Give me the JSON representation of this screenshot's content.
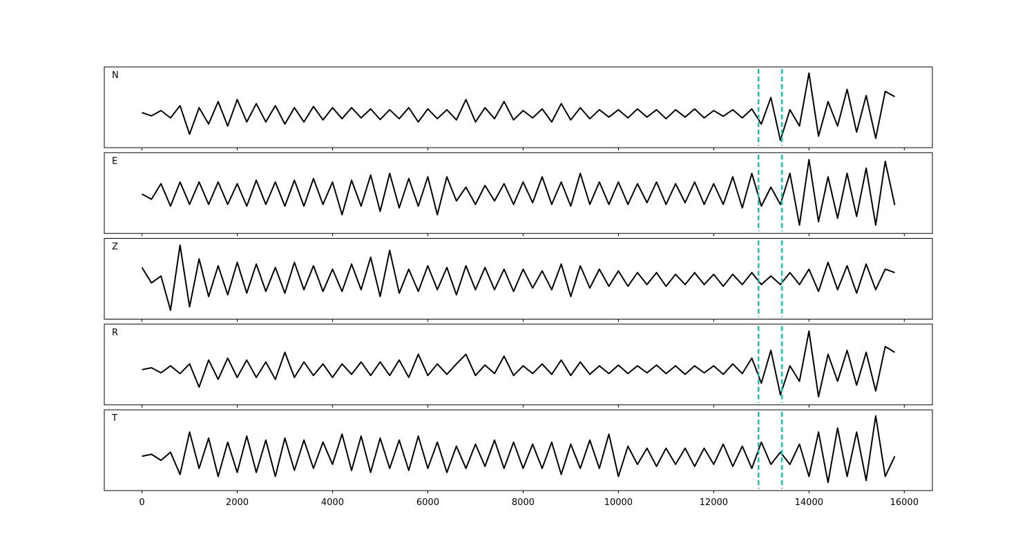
{
  "chart_data": {
    "type": "line",
    "stacked_panels": true,
    "x": [
      0,
      200,
      400,
      600,
      800,
      1000,
      1200,
      1400,
      1600,
      1800,
      2000,
      2200,
      2400,
      2600,
      2800,
      3000,
      3200,
      3400,
      3600,
      3800,
      4000,
      4200,
      4400,
      4600,
      4800,
      5000,
      5200,
      5400,
      5600,
      5800,
      6000,
      6200,
      6400,
      6600,
      6800,
      7000,
      7200,
      7400,
      7600,
      7800,
      8000,
      8200,
      8400,
      8600,
      8800,
      9000,
      9200,
      9400,
      9600,
      9800,
      10000,
      10200,
      10400,
      10600,
      10800,
      11000,
      11200,
      11400,
      11600,
      11800,
      12000,
      12200,
      12400,
      12600,
      12800,
      13000,
      13200,
      13400,
      13600,
      13800,
      14000,
      14200,
      14400,
      14600,
      14800,
      15000,
      15200,
      15400,
      15600,
      15800
    ],
    "xlim": [
      -790,
      16590
    ],
    "xticks": [
      0,
      2000,
      4000,
      6000,
      8000,
      10000,
      12000,
      14000,
      16000
    ],
    "vlines": [
      12940,
      13430
    ],
    "vline_color": "#17bfae",
    "series": [
      {
        "name": "N",
        "color": "#000000",
        "ylim": [
          -0.83,
          1.15
        ],
        "values": [
          0.03,
          -0.05,
          0.08,
          -0.1,
          0.2,
          -0.5,
          0.15,
          -0.25,
          0.3,
          -0.3,
          0.35,
          -0.2,
          0.25,
          -0.2,
          0.2,
          -0.25,
          0.15,
          -0.2,
          0.18,
          -0.15,
          0.15,
          -0.12,
          0.15,
          -0.1,
          0.12,
          -0.14,
          0.1,
          -0.12,
          0.15,
          -0.2,
          0.12,
          -0.12,
          0.1,
          -0.15,
          0.35,
          -0.2,
          0.15,
          -0.12,
          0.3,
          -0.15,
          0.08,
          -0.1,
          0.12,
          -0.2,
          0.25,
          -0.15,
          0.15,
          -0.12,
          0.1,
          -0.08,
          0.1,
          -0.1,
          0.12,
          -0.08,
          0.1,
          -0.12,
          0.1,
          -0.08,
          0.12,
          -0.1,
          0.08,
          -0.06,
          0.1,
          -0.1,
          0.12,
          -0.25,
          0.4,
          -0.65,
          0.1,
          -0.3,
          1.0,
          -0.55,
          0.3,
          -0.3,
          0.6,
          -0.45,
          0.45,
          -0.6,
          0.55,
          0.42
        ]
      },
      {
        "name": "E",
        "color": "#000000",
        "ylim": [
          -1.14,
          1.2
        ],
        "values": [
          0.0,
          -0.15,
          0.3,
          -0.35,
          0.35,
          -0.3,
          0.35,
          -0.3,
          0.35,
          -0.3,
          0.3,
          -0.35,
          0.4,
          -0.3,
          0.35,
          -0.35,
          0.4,
          -0.35,
          0.45,
          -0.3,
          0.35,
          -0.6,
          0.4,
          -0.35,
          0.55,
          -0.5,
          0.6,
          -0.4,
          0.45,
          -0.35,
          0.5,
          -0.6,
          0.5,
          -0.2,
          0.2,
          -0.3,
          0.25,
          -0.2,
          0.3,
          -0.3,
          0.35,
          -0.25,
          0.5,
          -0.3,
          0.35,
          -0.35,
          0.6,
          -0.3,
          0.35,
          -0.3,
          0.35,
          -0.3,
          0.3,
          -0.25,
          0.35,
          -0.3,
          0.3,
          -0.25,
          0.35,
          -0.3,
          0.3,
          -0.3,
          0.5,
          -0.4,
          0.6,
          -0.35,
          0.2,
          -0.3,
          0.6,
          -0.9,
          1.0,
          -0.8,
          0.5,
          -0.7,
          0.6,
          -0.65,
          0.75,
          -0.9,
          0.95,
          -0.32
        ]
      },
      {
        "name": "Z",
        "color": "#000000",
        "ylim": [
          -1.16,
          1.2
        ],
        "values": [
          0.35,
          -0.1,
          0.1,
          -0.9,
          1.0,
          -0.8,
          0.6,
          -0.5,
          0.4,
          -0.45,
          0.5,
          -0.4,
          0.45,
          -0.35,
          0.35,
          -0.4,
          0.5,
          -0.3,
          0.4,
          -0.35,
          0.3,
          -0.35,
          0.45,
          -0.3,
          0.65,
          -0.5,
          0.85,
          -0.4,
          0.3,
          -0.35,
          0.4,
          -0.3,
          0.35,
          -0.45,
          0.4,
          -0.3,
          0.35,
          -0.3,
          0.3,
          -0.35,
          0.3,
          -0.25,
          0.25,
          -0.3,
          0.45,
          -0.5,
          0.4,
          -0.25,
          0.3,
          -0.2,
          0.25,
          -0.2,
          0.2,
          -0.15,
          0.2,
          -0.2,
          0.15,
          -0.15,
          0.2,
          -0.15,
          0.15,
          -0.2,
          0.15,
          -0.15,
          0.2,
          -0.15,
          0.1,
          -0.15,
          0.2,
          -0.15,
          0.3,
          -0.35,
          0.5,
          -0.3,
          0.4,
          -0.4,
          0.45,
          -0.3,
          0.3,
          0.2
        ]
      },
      {
        "name": "R",
        "color": "#000000",
        "ylim": [
          -0.91,
          1.18
        ],
        "values": [
          0.0,
          0.05,
          -0.08,
          0.1,
          -0.1,
          0.15,
          -0.45,
          0.25,
          -0.25,
          0.3,
          -0.2,
          0.25,
          -0.2,
          0.2,
          -0.25,
          0.45,
          -0.2,
          0.2,
          -0.15,
          0.15,
          -0.2,
          0.15,
          -0.12,
          0.2,
          -0.15,
          0.2,
          -0.15,
          0.25,
          -0.2,
          0.4,
          -0.15,
          0.15,
          -0.12,
          0.15,
          0.4,
          -0.15,
          0.12,
          -0.1,
          0.35,
          -0.15,
          0.1,
          -0.1,
          0.15,
          -0.12,
          0.25,
          -0.15,
          0.2,
          -0.12,
          0.1,
          -0.1,
          0.12,
          -0.1,
          0.1,
          -0.08,
          0.12,
          -0.1,
          0.1,
          -0.12,
          0.1,
          -0.08,
          0.1,
          -0.12,
          0.15,
          -0.1,
          0.3,
          -0.35,
          0.5,
          -0.65,
          0.1,
          -0.3,
          1.0,
          -0.7,
          0.4,
          -0.3,
          0.5,
          -0.4,
          0.45,
          -0.55,
          0.6,
          0.45
        ]
      },
      {
        "name": "T",
        "color": "#000000",
        "ylim": [
          -0.85,
          1.15
        ],
        "values": [
          0.0,
          0.05,
          -0.1,
          0.1,
          -0.45,
          0.6,
          -0.3,
          0.45,
          -0.5,
          0.35,
          -0.4,
          0.5,
          -0.4,
          0.4,
          -0.5,
          0.45,
          -0.35,
          0.4,
          -0.3,
          0.35,
          -0.2,
          0.55,
          -0.35,
          0.5,
          -0.4,
          0.45,
          -0.3,
          0.4,
          -0.35,
          0.5,
          -0.3,
          0.35,
          -0.4,
          0.25,
          -0.3,
          0.3,
          -0.25,
          0.4,
          -0.3,
          0.35,
          -0.3,
          0.3,
          -0.3,
          0.35,
          -0.45,
          0.3,
          -0.3,
          0.4,
          -0.3,
          0.55,
          -0.5,
          0.25,
          -0.2,
          0.2,
          -0.25,
          0.2,
          -0.2,
          0.2,
          -0.25,
          0.2,
          -0.2,
          0.3,
          -0.25,
          0.25,
          -0.3,
          0.35,
          -0.2,
          0.1,
          -0.2,
          0.3,
          -0.5,
          0.6,
          -0.65,
          0.7,
          -0.5,
          0.6,
          -0.6,
          1.0,
          -0.5,
          0.0
        ]
      }
    ]
  }
}
